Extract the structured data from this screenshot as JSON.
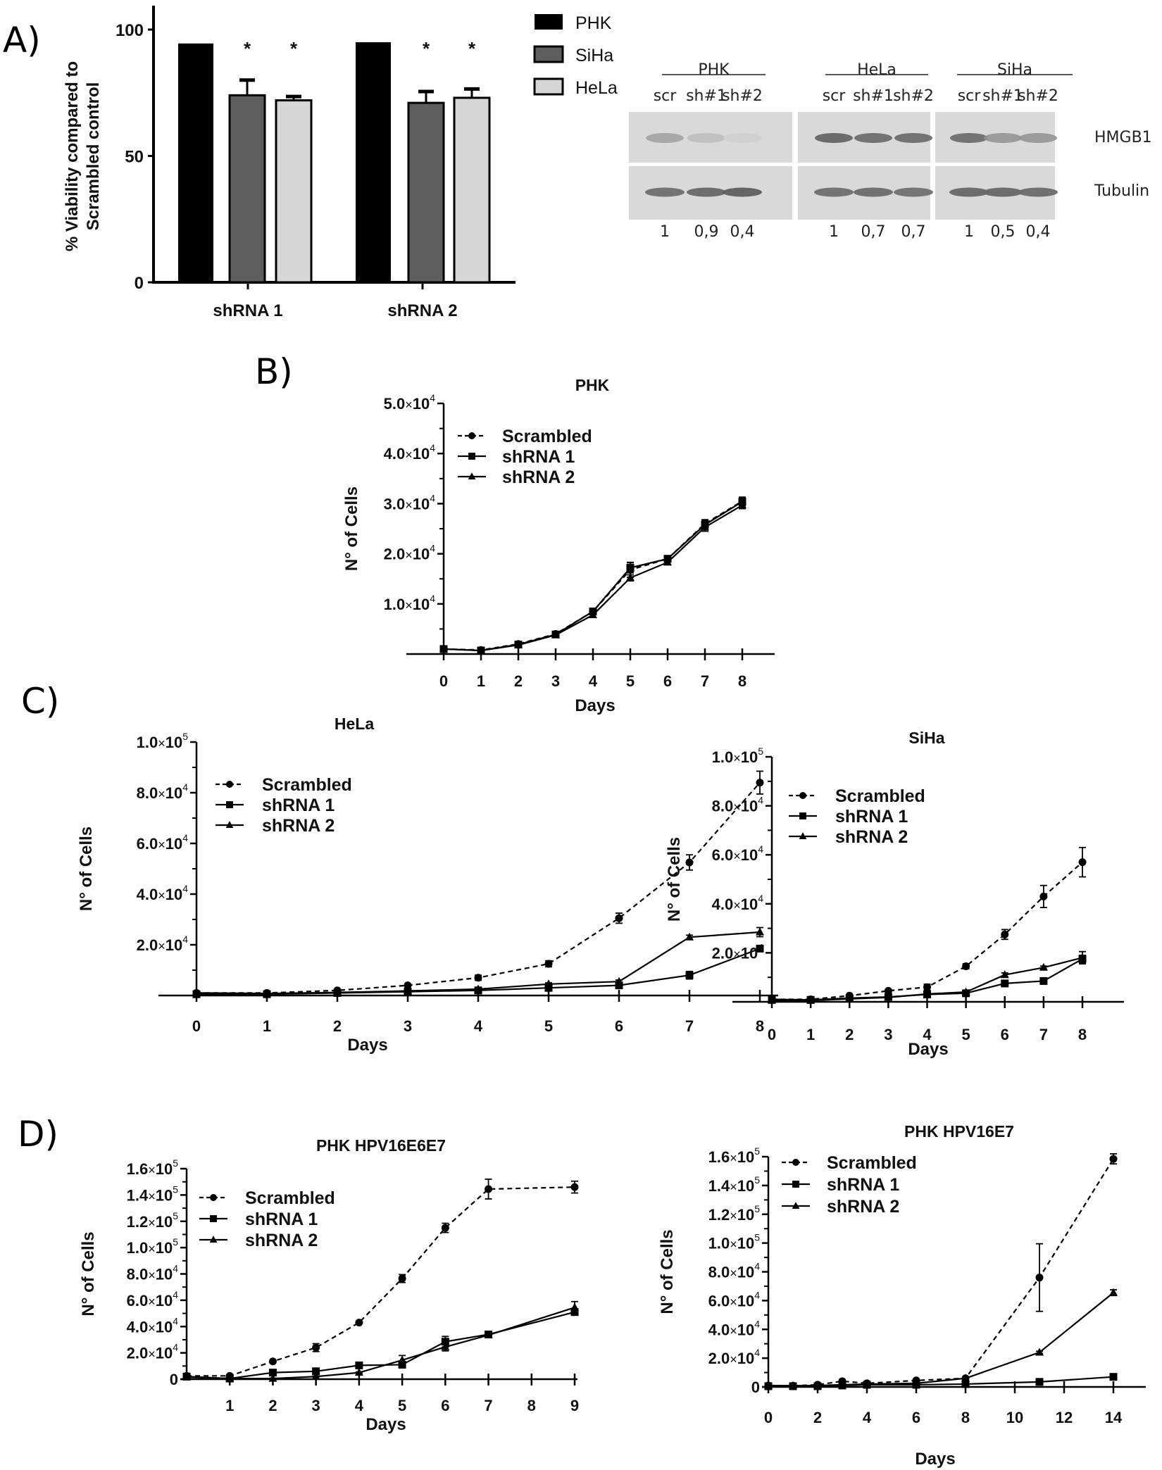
{
  "panels": {
    "A": {
      "label": "A)"
    },
    "B": {
      "label": "B)"
    },
    "C": {
      "label": "C)"
    },
    "D": {
      "label": "D)"
    }
  },
  "western_blot": {
    "groups": [
      {
        "name": "PHK",
        "lanes": [
          "scr",
          "sh#1",
          "sh#2"
        ],
        "quant": [
          "1",
          "0,9",
          "0,4"
        ],
        "hmgb1_intensity": [
          0.35,
          0.18,
          0.06
        ],
        "tubulin_intensity": [
          0.7,
          0.75,
          0.8
        ]
      },
      {
        "name": "HeLa",
        "lanes": [
          "scr",
          "sh#1",
          "sh#2"
        ],
        "quant": [
          "1",
          "0,7",
          "0,7"
        ],
        "hmgb1_intensity": [
          0.8,
          0.75,
          0.75
        ],
        "tubulin_intensity": [
          0.7,
          0.72,
          0.68
        ]
      },
      {
        "name": "SiHa",
        "lanes": [
          "scr",
          "sh#1",
          "sh#2"
        ],
        "quant": [
          "1",
          "0,5",
          "0,4"
        ],
        "hmgb1_intensity": [
          0.75,
          0.45,
          0.45
        ],
        "tubulin_intensity": [
          0.75,
          0.75,
          0.72
        ]
      }
    ],
    "row_labels": [
      "HMGB1",
      "Tubulin"
    ]
  },
  "chart_data": [
    {
      "id": "A",
      "type": "bar",
      "title": "",
      "xlabel": "",
      "ylabel": "% Viability compared to Scrambled control",
      "ylabel_lines": [
        "% Viability compared to",
        "Scrambled control"
      ],
      "categories": [
        "shRNA 1",
        "shRNA 2"
      ],
      "ylim": [
        0,
        100
      ],
      "yticks": [
        0,
        50,
        100
      ],
      "series": [
        {
          "name": "PHK",
          "color": "#000000",
          "values": [
            94.5,
            95
          ],
          "errors": [
            0,
            0
          ],
          "significance": [
            "",
            ""
          ]
        },
        {
          "name": "SiHa",
          "color": "#5e5e5e",
          "values": [
            74,
            71
          ],
          "errors": [
            6,
            4.5
          ],
          "significance": [
            "*",
            "*"
          ]
        },
        {
          "name": "HeLa",
          "color": "#d6d6d6",
          "values": [
            72,
            73
          ],
          "errors": [
            1.5,
            3.5
          ],
          "significance": [
            "*",
            "*"
          ]
        }
      ],
      "legend_position": "right"
    },
    {
      "id": "B",
      "type": "line",
      "title": "PHK",
      "xlabel": "Days",
      "ylabel": "N° of Cells",
      "x": [
        0,
        1,
        2,
        3,
        4,
        5,
        6,
        7,
        8
      ],
      "xticks": [
        "0",
        "1",
        "2",
        "3",
        "4",
        "5",
        "6",
        "7",
        "8"
      ],
      "ylim": [
        0,
        50000
      ],
      "yticks": [
        {
          "v": 10000,
          "m": "1.0",
          "e": "4"
        },
        {
          "v": 20000,
          "m": "2.0",
          "e": "4"
        },
        {
          "v": 30000,
          "m": "3.0",
          "e": "4"
        },
        {
          "v": 40000,
          "m": "4.0",
          "e": "4"
        },
        {
          "v": 50000,
          "m": "5.0",
          "e": "4"
        }
      ],
      "series": [
        {
          "name": "Scrambled",
          "style": "dashed",
          "marker": "circle",
          "values": [
            1000,
            800,
            2000,
            4000,
            8500,
            16800,
            19000,
            26000,
            30500
          ],
          "errors": [
            200,
            200,
            300,
            300,
            500,
            1500,
            500,
            800,
            800
          ]
        },
        {
          "name": "shRNA 1",
          "style": "solid",
          "marker": "square",
          "values": [
            1000,
            700,
            1900,
            3900,
            8500,
            17200,
            19000,
            25800,
            30400
          ],
          "errors": [
            200,
            200,
            300,
            300,
            500,
            1000,
            500,
            800,
            800
          ]
        },
        {
          "name": "shRNA 2",
          "style": "solid",
          "marker": "triangle",
          "values": [
            1000,
            700,
            1800,
            3800,
            7800,
            15200,
            18300,
            25300,
            29700
          ],
          "errors": [
            200,
            200,
            300,
            300,
            500,
            600,
            500,
            800,
            700
          ]
        }
      ],
      "legend_position": "upper-left"
    },
    {
      "id": "C-HeLa",
      "type": "line",
      "title": "HeLa",
      "xlabel": "Days",
      "ylabel": "N° of Cells",
      "x": [
        0,
        1,
        2,
        3,
        4,
        5,
        6,
        7,
        8
      ],
      "xticks": [
        "0",
        "1",
        "2",
        "3",
        "4",
        "5",
        "6",
        "7",
        "8"
      ],
      "ylim": [
        0,
        100000
      ],
      "yticks": [
        {
          "v": 20000,
          "m": "2.0",
          "e": "4"
        },
        {
          "v": 40000,
          "m": "4.0",
          "e": "4"
        },
        {
          "v": 60000,
          "m": "6.0",
          "e": "4"
        },
        {
          "v": 80000,
          "m": "8.0",
          "e": "4"
        },
        {
          "v": 100000,
          "m": "1.0",
          "e": "5"
        }
      ],
      "series": [
        {
          "name": "Scrambled",
          "style": "dashed",
          "marker": "circle",
          "values": [
            1000,
            1000,
            2000,
            4000,
            7000,
            12500,
            30500,
            52500,
            84000
          ],
          "errors": [
            200,
            200,
            300,
            500,
            1000,
            1200,
            2000,
            3000,
            4500
          ]
        },
        {
          "name": "shRNA 1",
          "style": "solid",
          "marker": "square",
          "values": [
            500,
            500,
            1000,
            1500,
            2000,
            3000,
            4000,
            8000,
            18500
          ],
          "errors": [
            200,
            200,
            200,
            300,
            300,
            500,
            500,
            1500,
            1000
          ]
        },
        {
          "name": "shRNA 2",
          "style": "solid",
          "marker": "triangle",
          "values": [
            1000,
            800,
            1200,
            1800,
            2500,
            4500,
            5500,
            23000,
            25000
          ],
          "errors": [
            200,
            200,
            200,
            300,
            300,
            500,
            600,
            800,
            1800
          ]
        }
      ],
      "legend_position": "upper-left"
    },
    {
      "id": "C-SiHa",
      "type": "line",
      "title": "SiHa",
      "xlabel": "Days",
      "ylabel": "N° of Cells",
      "x": [
        0,
        1,
        2,
        3,
        4,
        5,
        6,
        7,
        8
      ],
      "xticks": [
        "0",
        "1",
        "2",
        "3",
        "4",
        "5",
        "6",
        "7",
        "8"
      ],
      "ylim": [
        0,
        100000
      ],
      "yticks": [
        {
          "v": 20000,
          "m": "2.0",
          "e": "4"
        },
        {
          "v": 40000,
          "m": "4.0",
          "e": "4"
        },
        {
          "v": 60000,
          "m": "6.0",
          "e": "4"
        },
        {
          "v": 80000,
          "m": "8.0",
          "e": "4"
        },
        {
          "v": 100000,
          "m": "1.0",
          "e": "5"
        }
      ],
      "series": [
        {
          "name": "Scrambled",
          "style": "dashed",
          "marker": "circle",
          "values": [
            1000,
            1000,
            2500,
            4500,
            6000,
            14500,
            27500,
            43000,
            57000
          ],
          "errors": [
            200,
            200,
            300,
            500,
            1200,
            1000,
            2000,
            4500,
            6000
          ]
        },
        {
          "name": "shRNA 1",
          "style": "solid",
          "marker": "square",
          "values": [
            1000,
            800,
            1500,
            2000,
            3000,
            3500,
            7500,
            8500,
            17500
          ],
          "errors": [
            200,
            200,
            300,
            300,
            500,
            500,
            600,
            800,
            1500
          ]
        },
        {
          "name": "shRNA 2",
          "style": "solid",
          "marker": "triangle",
          "values": [
            500,
            500,
            1200,
            1800,
            3200,
            4000,
            11000,
            14000,
            18000
          ],
          "errors": [
            200,
            200,
            300,
            300,
            500,
            500,
            800,
            600,
            2500
          ]
        }
      ],
      "legend_position": "upper-left"
    },
    {
      "id": "D-E6E7",
      "type": "line",
      "title": "PHK HPV16E6E7",
      "xlabel": "Days",
      "ylabel": "N° of Cells",
      "x": [
        0,
        1,
        2,
        3,
        4,
        5,
        6,
        7,
        9
      ],
      "xticks": [
        "1",
        "2",
        "3",
        "4",
        "5",
        "6",
        "7",
        "8",
        "9"
      ],
      "xtick_values": [
        1,
        2,
        3,
        4,
        5,
        6,
        7,
        8,
        9
      ],
      "xlim": [
        0,
        9
      ],
      "ylim": [
        0,
        160000
      ],
      "yticks": [
        {
          "v": 0,
          "m": "0",
          "e": ""
        },
        {
          "v": 20000,
          "m": "2.0",
          "e": "4"
        },
        {
          "v": 40000,
          "m": "4.0",
          "e": "4"
        },
        {
          "v": 60000,
          "m": "6.0",
          "e": "4"
        },
        {
          "v": 80000,
          "m": "8.0",
          "e": "4"
        },
        {
          "v": 100000,
          "m": "1.0",
          "e": "5"
        },
        {
          "v": 120000,
          "m": "1.2",
          "e": "5"
        },
        {
          "v": 140000,
          "m": "1.4",
          "e": "5"
        },
        {
          "v": 160000,
          "m": "1.6",
          "e": "5"
        }
      ],
      "series": [
        {
          "name": "Scrambled",
          "style": "dashed",
          "marker": "circle",
          "values": [
            2500,
            2500,
            13500,
            24000,
            43000,
            76500,
            115000,
            144500,
            146000
          ],
          "errors": [
            300,
            500,
            800,
            3000,
            800,
            3000,
            3500,
            7500,
            4500
          ]
        },
        {
          "name": "shRNA 1",
          "style": "solid",
          "marker": "square",
          "values": [
            2000,
            500,
            5000,
            6000,
            10500,
            11000,
            28500,
            34000,
            51000
          ],
          "errors": [
            300,
            300,
            500,
            500,
            500,
            1500,
            4000,
            1000,
            1500
          ]
        },
        {
          "name": "shRNA 2",
          "style": "solid",
          "marker": "triangle",
          "values": [
            1500,
            500,
            500,
            2000,
            5000,
            14500,
            24500,
            33500,
            54500
          ],
          "errors": [
            300,
            300,
            300,
            300,
            500,
            3500,
            3000,
            1000,
            4500
          ]
        }
      ],
      "legend_position": "upper-left"
    },
    {
      "id": "D-E7",
      "type": "line",
      "title": "PHK HPV16E7",
      "xlabel": "Days",
      "ylabel": "N° of Cells",
      "x": [
        0,
        1,
        2,
        3,
        4,
        6,
        8,
        11,
        14
      ],
      "xticks": [
        "0",
        "2",
        "4",
        "6",
        "8",
        "10",
        "12",
        "14"
      ],
      "xtick_values": [
        0,
        2,
        4,
        6,
        8,
        10,
        12,
        14
      ],
      "xlim": [
        0,
        15
      ],
      "ylim": [
        0,
        160000
      ],
      "yticks": [
        {
          "v": 0,
          "m": "0",
          "e": ""
        },
        {
          "v": 20000,
          "m": "2.0",
          "e": "4"
        },
        {
          "v": 40000,
          "m": "4.0",
          "e": "4"
        },
        {
          "v": 60000,
          "m": "6.0",
          "e": "4"
        },
        {
          "v": 80000,
          "m": "8.0",
          "e": "4"
        },
        {
          "v": 100000,
          "m": "1.0",
          "e": "5"
        },
        {
          "v": 120000,
          "m": "1.2",
          "e": "5"
        },
        {
          "v": 140000,
          "m": "1.4",
          "e": "5"
        },
        {
          "v": 160000,
          "m": "1.6",
          "e": "5"
        }
      ],
      "series": [
        {
          "name": "Scrambled",
          "style": "dashed",
          "marker": "circle",
          "values": [
            1000,
            800,
            1500,
            4000,
            2500,
            4500,
            6000,
            76000,
            158500
          ],
          "errors": [
            200,
            200,
            300,
            300,
            300,
            300,
            500,
            23500,
            3500
          ]
        },
        {
          "name": "shRNA 1",
          "style": "solid",
          "marker": "square",
          "values": [
            500,
            500,
            500,
            1000,
            1500,
            1500,
            2000,
            3500,
            7000
          ],
          "errors": [
            200,
            200,
            200,
            200,
            200,
            200,
            300,
            500,
            800
          ]
        },
        {
          "name": "shRNA 2",
          "style": "solid",
          "marker": "triangle",
          "values": [
            1000,
            800,
            1000,
            1500,
            2000,
            2500,
            6000,
            24000,
            65500
          ],
          "errors": [
            200,
            200,
            200,
            200,
            200,
            300,
            500,
            800,
            2000
          ]
        }
      ],
      "legend_position": "upper-left"
    }
  ]
}
